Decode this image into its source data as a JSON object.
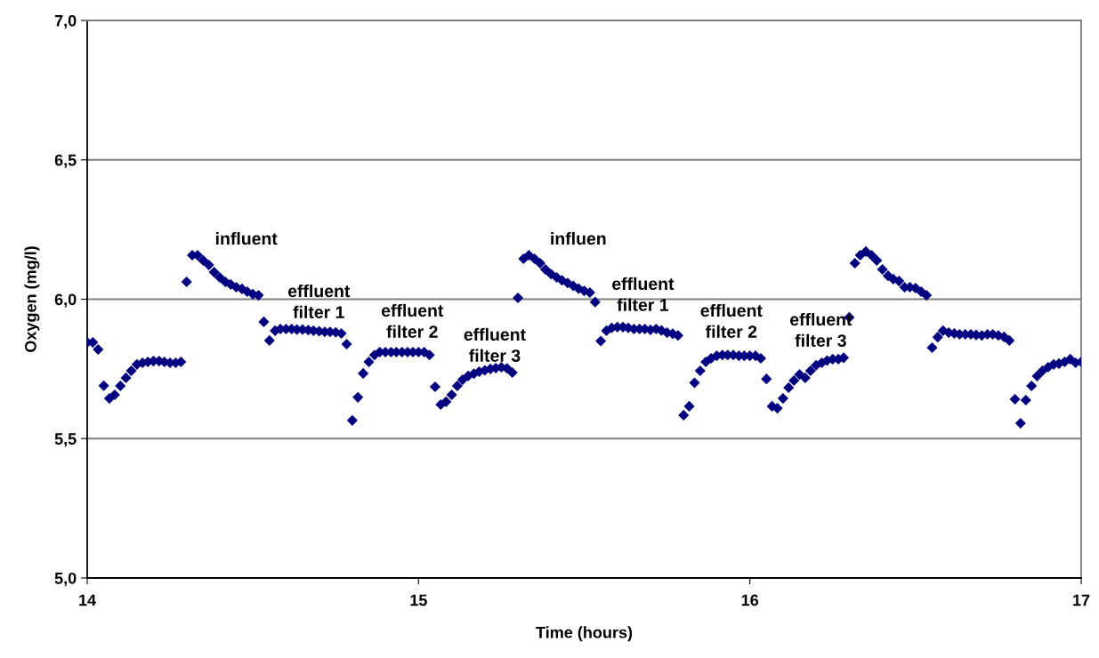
{
  "chart_data": {
    "type": "scatter",
    "xlabel": "Time (hours)",
    "ylabel": "Oxygen (mg/l)",
    "xlim": [
      14,
      17
    ],
    "xticks": [
      14,
      15,
      16,
      17
    ],
    "ylim": [
      5,
      7
    ],
    "yticks": [
      {
        "value": 5,
        "label": "5,0"
      },
      {
        "value": 5.5,
        "label": "5,5"
      },
      {
        "value": 6,
        "label": "6,0"
      },
      {
        "value": 6.5,
        "label": "6,5"
      },
      {
        "value": 7,
        "label": "7,0"
      }
    ],
    "grid": "y",
    "marker": "diamond",
    "legend": false,
    "x": [
      14,
      14.017,
      14.033,
      14.05,
      14.067,
      14.083,
      14.1,
      14.117,
      14.133,
      14.15,
      14.167,
      14.183,
      14.2,
      14.217,
      14.233,
      14.25,
      14.267,
      14.283,
      14.3,
      14.317,
      14.333,
      14.35,
      14.367,
      14.383,
      14.4,
      14.417,
      14.433,
      14.45,
      14.467,
      14.483,
      14.5,
      14.517,
      14.533,
      14.55,
      14.567,
      14.583,
      14.6,
      14.617,
      14.633,
      14.65,
      14.667,
      14.683,
      14.7,
      14.717,
      14.733,
      14.75,
      14.767,
      14.783,
      14.8,
      14.817,
      14.833,
      14.85,
      14.867,
      14.883,
      14.9,
      14.917,
      14.933,
      14.95,
      14.967,
      14.983,
      15,
      15.017,
      15.033,
      15.05,
      15.067,
      15.083,
      15.1,
      15.117,
      15.133,
      15.15,
      15.167,
      15.183,
      15.2,
      15.217,
      15.233,
      15.25,
      15.267,
      15.283,
      15.3,
      15.317,
      15.333,
      15.35,
      15.367,
      15.383,
      15.4,
      15.417,
      15.433,
      15.45,
      15.467,
      15.483,
      15.5,
      15.517,
      15.533,
      15.55,
      15.567,
      15.583,
      15.6,
      15.617,
      15.633,
      15.65,
      15.667,
      15.683,
      15.7,
      15.717,
      15.733,
      15.75,
      15.767,
      15.783,
      15.8,
      15.817,
      15.833,
      15.85,
      15.867,
      15.883,
      15.9,
      15.917,
      15.933,
      15.95,
      15.967,
      15.983,
      16,
      16.017,
      16.033,
      16.05,
      16.067,
      16.083,
      16.1,
      16.117,
      16.133,
      16.15,
      16.167,
      16.183,
      16.2,
      16.217,
      16.233,
      16.25,
      16.267,
      16.283,
      16.3,
      16.317,
      16.333,
      16.35,
      16.367,
      16.383,
      16.4,
      16.417,
      16.433,
      16.45,
      16.467,
      16.483,
      16.5,
      16.517,
      16.533,
      16.55,
      16.567,
      16.583,
      16.6,
      16.617,
      16.633,
      16.65,
      16.667,
      16.683,
      16.7,
      16.717,
      16.733,
      16.75,
      16.767,
      16.783,
      16.8,
      16.817,
      16.833,
      16.85,
      16.867,
      16.883,
      16.9,
      16.917,
      16.933,
      16.95,
      16.967,
      16.983,
      17
    ],
    "series": [
      {
        "color": "#000080",
        "values": [
          5.845,
          5.845,
          5.82,
          5.69,
          5.644,
          5.657,
          5.689,
          5.718,
          5.743,
          5.766,
          5.772,
          5.775,
          5.778,
          5.778,
          5.775,
          5.772,
          5.772,
          5.775,
          6.062,
          6.158,
          6.158,
          6.139,
          6.123,
          6.097,
          6.078,
          6.062,
          6.053,
          6.043,
          6.037,
          6.027,
          6.018,
          6.014,
          5.919,
          5.852,
          5.887,
          5.893,
          5.893,
          5.893,
          5.891,
          5.891,
          5.889,
          5.887,
          5.885,
          5.883,
          5.883,
          5.881,
          5.877,
          5.839,
          5.565,
          5.648,
          5.734,
          5.775,
          5.8,
          5.81,
          5.81,
          5.81,
          5.81,
          5.81,
          5.81,
          5.81,
          5.81,
          5.81,
          5.8,
          5.686,
          5.622,
          5.632,
          5.657,
          5.689,
          5.711,
          5.725,
          5.733,
          5.74,
          5.745,
          5.75,
          5.753,
          5.756,
          5.752,
          5.737,
          6.005,
          6.145,
          6.158,
          6.145,
          6.129,
          6.107,
          6.09,
          6.078,
          6.068,
          6.058,
          6.048,
          6.038,
          6.03,
          6.024,
          5.99,
          5.85,
          5.887,
          5.897,
          5.9,
          5.9,
          5.897,
          5.893,
          5.893,
          5.893,
          5.89,
          5.893,
          5.888,
          5.88,
          5.876,
          5.87,
          5.584,
          5.616,
          5.7,
          5.743,
          5.775,
          5.788,
          5.797,
          5.8,
          5.8,
          5.8,
          5.797,
          5.797,
          5.797,
          5.797,
          5.788,
          5.714,
          5.616,
          5.609,
          5.644,
          5.683,
          5.708,
          5.73,
          5.718,
          5.743,
          5.763,
          5.772,
          5.78,
          5.785,
          5.785,
          5.79,
          5.935,
          6.129,
          6.158,
          6.171,
          6.158,
          6.139,
          6.107,
          6.084,
          6.072,
          6.065,
          6.043,
          6.043,
          6.04,
          6.027,
          6.014,
          5.826,
          5.864,
          5.887,
          5.88,
          5.877,
          5.874,
          5.874,
          5.874,
          5.872,
          5.87,
          5.874,
          5.874,
          5.87,
          5.865,
          5.852,
          5.641,
          5.555,
          5.638,
          5.689,
          5.724,
          5.743,
          5.756,
          5.766,
          5.769,
          5.775,
          5.785,
          5.772,
          5.775
        ]
      }
    ],
    "annotations": [
      "influent",
      "effluent\nfilter 1",
      "effluent\nfilter 2",
      "effluent\nfilter 3",
      "influen",
      "effluent\nfilter 1",
      "effluent\nfilter 2",
      "effluent\nfilter 3"
    ]
  }
}
